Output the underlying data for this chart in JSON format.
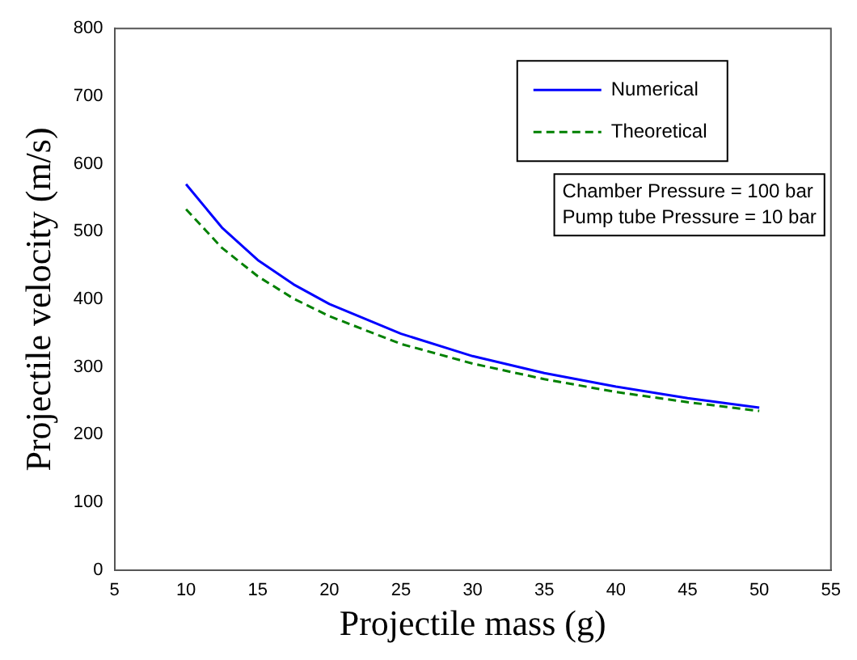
{
  "chart_data": {
    "type": "line",
    "xlabel": "Projectile mass (g)",
    "ylabel": "Projectile velocity (m/s)",
    "x": [
      10,
      12.5,
      15,
      17.5,
      20,
      25,
      30,
      35,
      40,
      45,
      50
    ],
    "series": [
      {
        "name": "Numerical",
        "color": "#0000ff",
        "line_style": "solid",
        "values": [
          570,
          506,
          458,
          422,
          393,
          349,
          316,
          291,
          271,
          254,
          240
        ]
      },
      {
        "name": "Theoretical",
        "color": "#008000",
        "line_style": "dashed",
        "values": [
          533,
          476,
          434,
          401,
          375,
          334,
          305,
          282,
          263,
          248,
          235
        ]
      }
    ],
    "xlim": [
      5,
      55
    ],
    "xticks": [
      5,
      10,
      15,
      20,
      25,
      30,
      35,
      40,
      45,
      50,
      55
    ],
    "ylim": [
      0,
      800
    ],
    "yticks": [
      0,
      100,
      200,
      300,
      400,
      500,
      600,
      700,
      800
    ],
    "legend": "top right",
    "marker": "none",
    "annotations": [
      "Chamber Pressure = 100 bar\nPump tube Pressure = 10 bar"
    ]
  }
}
